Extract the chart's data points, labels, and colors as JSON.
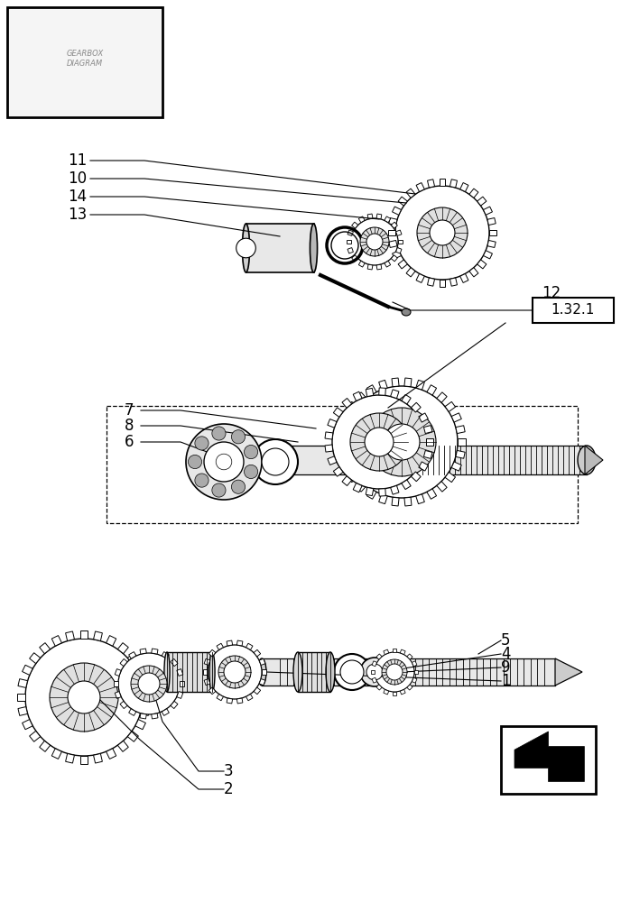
{
  "background_color": "#ffffff",
  "fig_width": 6.88,
  "fig_height": 10.0,
  "dpi": 100
}
